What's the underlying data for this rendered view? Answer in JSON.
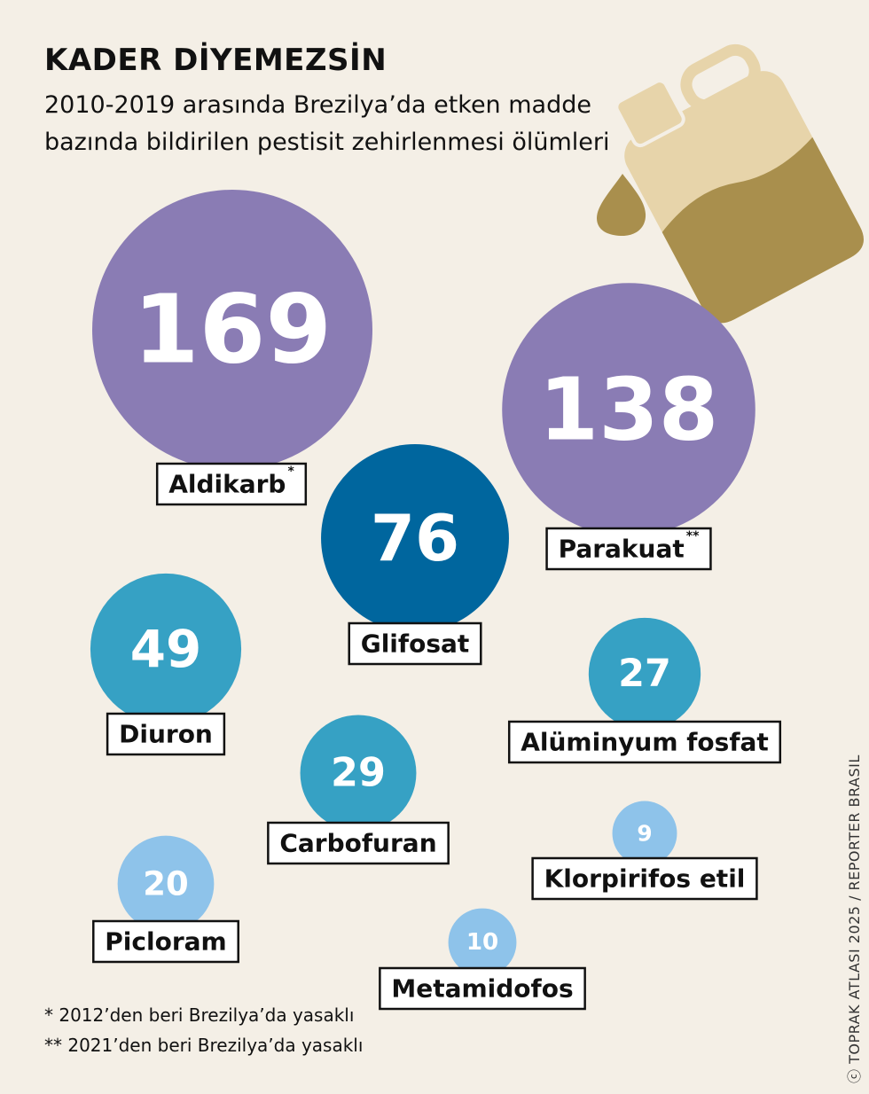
{
  "header": {
    "title": "KADER DİYEMEZSİN",
    "subtitle": "2010-2019 arasında Brezilya’da etken madde bazında bildirilen pestisit zehirlenmesi ölümleri"
  },
  "colors": {
    "background": "#f4efe6",
    "purple": "#8a7cb4",
    "dark_blue": "#00669e",
    "mid_blue": "#36a1c4",
    "light_blue": "#8ec3ea",
    "canister_fill": "#a98f4d",
    "canister_body": "#e7d4aa"
  },
  "chart_data": {
    "type": "bubble",
    "title": "KADER DİYEMEZSİN",
    "subtitle": "2010-2019 arasında Brezilya’da etken madde bazında bildirilen pestisit zehirlenmesi ölümleri",
    "categories": [
      "Aldikarb",
      "Parakuat",
      "Glifosat",
      "Diuron",
      "Carbofuran",
      "Alüminyum fosfat",
      "Picloram",
      "Metamidofos",
      "Klorpirifos etil"
    ],
    "values": [
      169,
      138,
      76,
      49,
      29,
      27,
      20,
      10,
      9
    ],
    "markers": [
      "*",
      "**",
      "",
      "",
      "",
      "",
      "",
      "",
      ""
    ],
    "labels": [
      "169",
      "138",
      "76",
      "49",
      "29",
      "27",
      "20",
      "10",
      "9"
    ],
    "color_keys": [
      "purple",
      "purple",
      "dark_blue",
      "mid_blue",
      "mid_blue",
      "mid_blue",
      "light_blue",
      "light_blue",
      "light_blue"
    ]
  },
  "footnotes": [
    "* 2012’den beri Brezilya’da yasaklı",
    "** 2021’den beri Brezilya’da yasaklı"
  ],
  "credit": "TOPRAK ATLASI 2025 / REPORTER BRASIL",
  "credit_icon": "creative-commons-icon",
  "illustration_icons": [
    "canister-icon",
    "drop-icon"
  ]
}
